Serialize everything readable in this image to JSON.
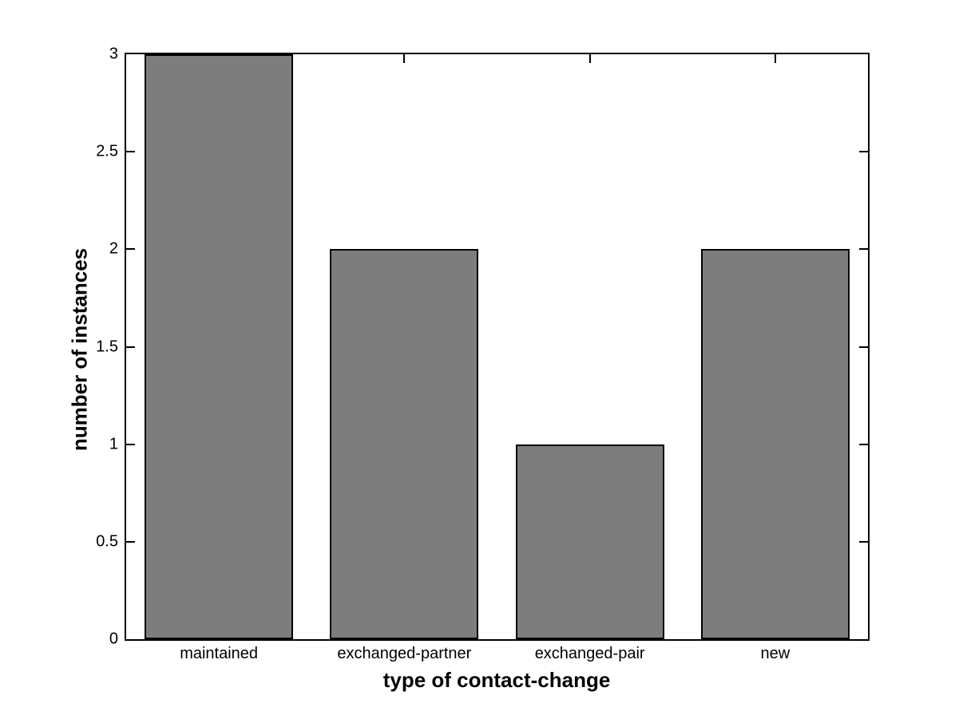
{
  "chart_data": {
    "type": "bar",
    "categories": [
      "maintained",
      "exchanged-partner",
      "exchanged-pair",
      "new"
    ],
    "values": [
      3,
      2,
      1,
      2
    ],
    "xlabel": "type of contact-change",
    "ylabel": "number of instances",
    "ylim": [
      0,
      3
    ],
    "yticks": [
      0,
      0.5,
      1,
      1.5,
      2,
      2.5,
      3
    ],
    "ytick_labels": [
      "0",
      "0.5",
      "1",
      "1.5",
      "2",
      "2.5",
      "3"
    ],
    "bar_color": "#7d7d7d",
    "bar_edge_color": "#000000",
    "axis_color": "#000000",
    "text_color": "#000000",
    "background_color": "#ffffff",
    "bar_width_fraction": 0.8,
    "grid": false,
    "legend": null
  }
}
